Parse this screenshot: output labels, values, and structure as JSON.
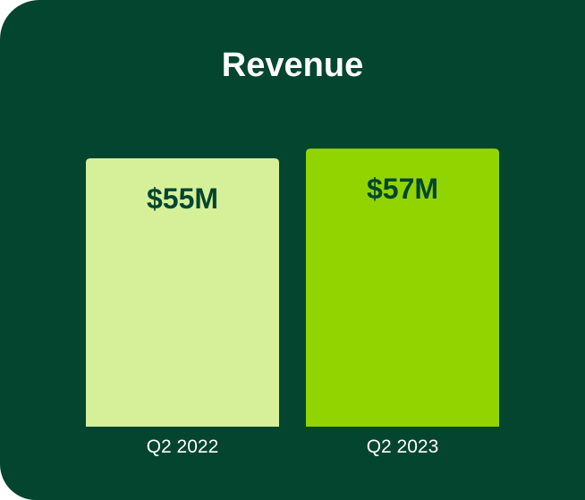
{
  "chart_data": {
    "type": "bar",
    "title": "Revenue",
    "categories": [
      "Q2 2022",
      "Q2 2023"
    ],
    "values": [
      55,
      57
    ],
    "value_labels": [
      "$55M",
      "$57M"
    ],
    "unit": "M",
    "xlabel": "",
    "ylabel": "",
    "grid": false,
    "legend": "none"
  },
  "colors": {
    "background": "#03452F",
    "bar_2022": "#D6F09A",
    "bar_2023": "#92D400",
    "value_label": "#03452F",
    "text_light": "#FFFFFF"
  }
}
